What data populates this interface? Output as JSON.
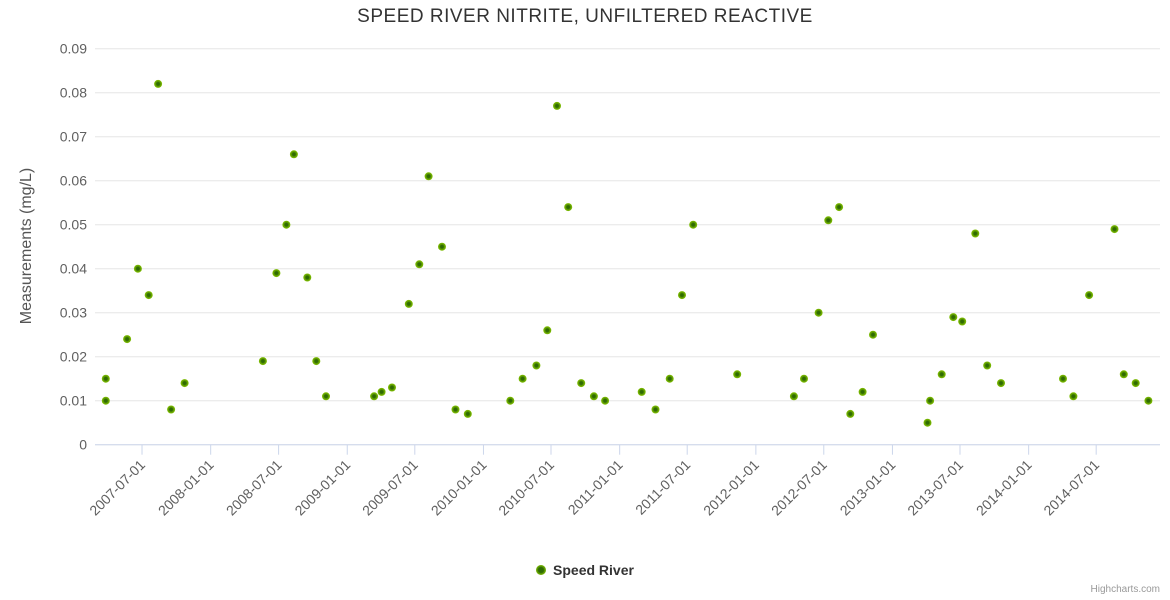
{
  "chart": {
    "title": "SPEED RIVER NITRITE, UNFILTERED REACTIVE",
    "credits": "Highcharts.com"
  },
  "legend": {
    "items": [
      {
        "label": "Speed River"
      }
    ]
  },
  "colors": {
    "grid": "#e6e6e6",
    "axis_line": "#ccd6eb",
    "tick_label": "#606060",
    "title": "#333333",
    "axis_title": "#555555",
    "legend_text": "#333333",
    "credits": "#999999",
    "marker_outer": "#84c303",
    "marker_inner": "#2f6b02"
  },
  "chart_data": {
    "type": "scatter",
    "title": "SPEED RIVER NITRITE, UNFILTERED REACTIVE",
    "xlabel": "",
    "ylabel": "Measurements (mg/L)",
    "ylim": [
      0,
      0.09
    ],
    "xlim": [
      "2007-02-25",
      "2014-12-19"
    ],
    "grid": true,
    "legend_position": "bottom-center",
    "yticks": [
      0,
      0.01,
      0.02,
      0.03,
      0.04,
      0.05,
      0.06,
      0.07,
      0.08,
      0.09
    ],
    "ytick_labels": [
      "0",
      "0.01",
      "0.02",
      "0.03",
      "0.04",
      "0.05",
      "0.06",
      "0.07",
      "0.08",
      "0.09"
    ],
    "xticks": [
      "2007-07-01",
      "2008-01-01",
      "2008-07-01",
      "2009-01-01",
      "2009-07-01",
      "2010-01-01",
      "2010-07-01",
      "2011-01-01",
      "2011-07-01",
      "2012-01-01",
      "2012-07-01",
      "2013-01-01",
      "2013-07-01",
      "2014-01-01",
      "2014-07-01"
    ],
    "series": [
      {
        "name": "Speed River",
        "data": [
          [
            "2007-03-26",
            0.015
          ],
          [
            "2007-03-26",
            0.01
          ],
          [
            "2007-05-22",
            0.024
          ],
          [
            "2007-06-20",
            0.04
          ],
          [
            "2007-07-19",
            0.034
          ],
          [
            "2007-08-13",
            0.082
          ],
          [
            "2007-09-17",
            0.008
          ],
          [
            "2007-10-23",
            0.014
          ],
          [
            "2008-05-20",
            0.019
          ],
          [
            "2008-06-25",
            0.039
          ],
          [
            "2008-07-22",
            0.05
          ],
          [
            "2008-08-11",
            0.066
          ],
          [
            "2008-09-16",
            0.038
          ],
          [
            "2008-10-10",
            0.019
          ],
          [
            "2008-11-05",
            0.011
          ],
          [
            "2009-03-14",
            0.011
          ],
          [
            "2009-04-03",
            0.012
          ],
          [
            "2009-05-01",
            0.013
          ],
          [
            "2009-06-15",
            0.032
          ],
          [
            "2009-07-13",
            0.041
          ],
          [
            "2009-08-07",
            0.061
          ],
          [
            "2009-09-12",
            0.045
          ],
          [
            "2009-10-18",
            0.008
          ],
          [
            "2009-11-20",
            0.007
          ],
          [
            "2010-03-14",
            0.01
          ],
          [
            "2010-04-16",
            0.015
          ],
          [
            "2010-05-23",
            0.018
          ],
          [
            "2010-06-21",
            0.026
          ],
          [
            "2010-07-17",
            0.077
          ],
          [
            "2010-08-16",
            0.054
          ],
          [
            "2010-09-20",
            0.014
          ],
          [
            "2010-10-24",
            0.011
          ],
          [
            "2010-11-23",
            0.01
          ],
          [
            "2011-03-01",
            0.012
          ],
          [
            "2011-04-07",
            0.008
          ],
          [
            "2011-05-15",
            0.015
          ],
          [
            "2011-06-17",
            0.034
          ],
          [
            "2011-07-17",
            0.05
          ],
          [
            "2011-11-12",
            0.016
          ],
          [
            "2012-04-12",
            0.011
          ],
          [
            "2012-05-09",
            0.015
          ],
          [
            "2012-06-17",
            0.03
          ],
          [
            "2012-07-13",
            0.051
          ],
          [
            "2012-08-11",
            0.054
          ],
          [
            "2012-09-10",
            0.007
          ],
          [
            "2012-10-13",
            0.012
          ],
          [
            "2012-11-10",
            0.025
          ],
          [
            "2013-04-05",
            0.005
          ],
          [
            "2013-04-12",
            0.01
          ],
          [
            "2013-05-13",
            0.016
          ],
          [
            "2013-06-13",
            0.029
          ],
          [
            "2013-07-07",
            0.028
          ],
          [
            "2013-08-11",
            0.048
          ],
          [
            "2013-09-12",
            0.018
          ],
          [
            "2013-10-19",
            0.014
          ],
          [
            "2014-04-03",
            0.015
          ],
          [
            "2014-05-01",
            0.011
          ],
          [
            "2014-06-12",
            0.034
          ],
          [
            "2014-08-19",
            0.049
          ],
          [
            "2014-09-13",
            0.016
          ],
          [
            "2014-10-15",
            0.014
          ],
          [
            "2014-11-18",
            0.01
          ]
        ]
      }
    ]
  }
}
